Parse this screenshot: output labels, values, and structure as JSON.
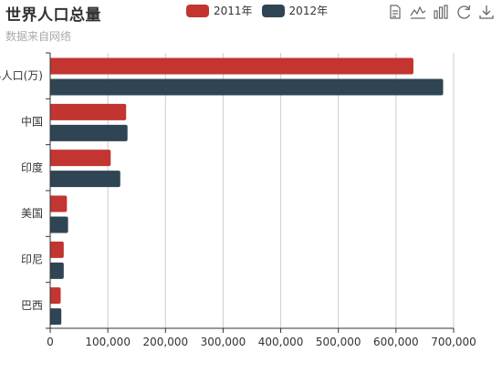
{
  "title": "世界人口总量",
  "subtitle": "数据来自网络",
  "toolbox": {
    "icons": [
      "data-view-icon",
      "line-chart-icon",
      "bar-chart-icon",
      "restore-icon",
      "save-image-icon"
    ]
  },
  "colors": {
    "series_2011": "#c23531",
    "series_2012": "#2f4554",
    "axis": "#333333",
    "grid": "#cccccc",
    "text": "#333333",
    "subtext": "#aaaaaa"
  },
  "chart_data": {
    "type": "bar",
    "orientation": "horizontal",
    "title": "世界人口总量",
    "subtitle": "数据来自网络",
    "categories": [
      "世界人口(万)",
      "中国",
      "印度",
      "美国",
      "印尼",
      "巴西"
    ],
    "series": [
      {
        "name": "2011年",
        "values": [
          630230,
          131744,
          104970,
          29034,
          23489,
          18203
        ]
      },
      {
        "name": "2012年",
        "values": [
          681807,
          134141,
          121594,
          31000,
          23489,
          19325
        ]
      }
    ],
    "xlim": [
      0,
      700000
    ],
    "xticks": [
      0,
      100000,
      200000,
      300000,
      400000,
      500000,
      600000,
      700000
    ],
    "xtick_labels": [
      "0",
      "100,000",
      "200,000",
      "300,000",
      "400,000",
      "500,000",
      "600,000",
      "700,000"
    ],
    "grid": true,
    "legend_position": "top-center"
  }
}
